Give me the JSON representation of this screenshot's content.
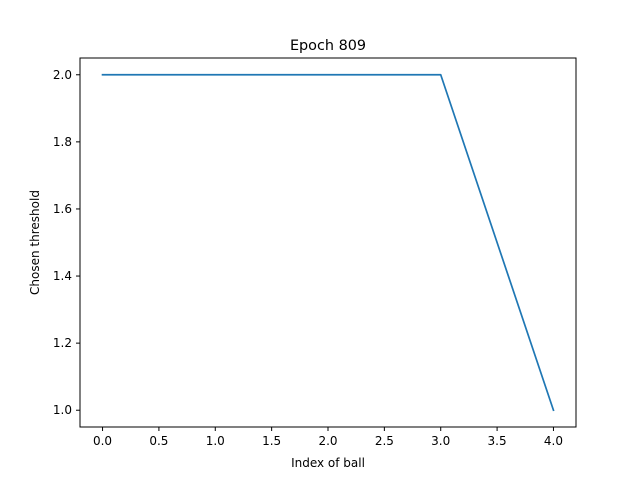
{
  "chart_data": {
    "type": "line",
    "title": "Epoch 809",
    "xlabel": "Index of ball",
    "ylabel": "Chosen threshold",
    "x": [
      0,
      1,
      2,
      3,
      4
    ],
    "series": [
      {
        "values": [
          2.0,
          2.0,
          2.0,
          2.0,
          1.0
        ],
        "color": "#1f77b4"
      }
    ],
    "xlim": [
      -0.2,
      4.2
    ],
    "ylim": [
      0.95,
      2.05
    ],
    "xticks": [
      0.0,
      0.5,
      1.0,
      1.5,
      2.0,
      2.5,
      3.0,
      3.5,
      4.0
    ],
    "xtick_labels": [
      "0.0",
      "0.5",
      "1.0",
      "1.5",
      "2.0",
      "2.5",
      "3.0",
      "3.5",
      "4.0"
    ],
    "yticks": [
      1.0,
      1.2,
      1.4,
      1.6,
      1.8,
      2.0
    ],
    "ytick_labels": [
      "1.0",
      "1.2",
      "1.4",
      "1.6",
      "1.8",
      "2.0"
    ],
    "grid": false,
    "legend": "none"
  }
}
